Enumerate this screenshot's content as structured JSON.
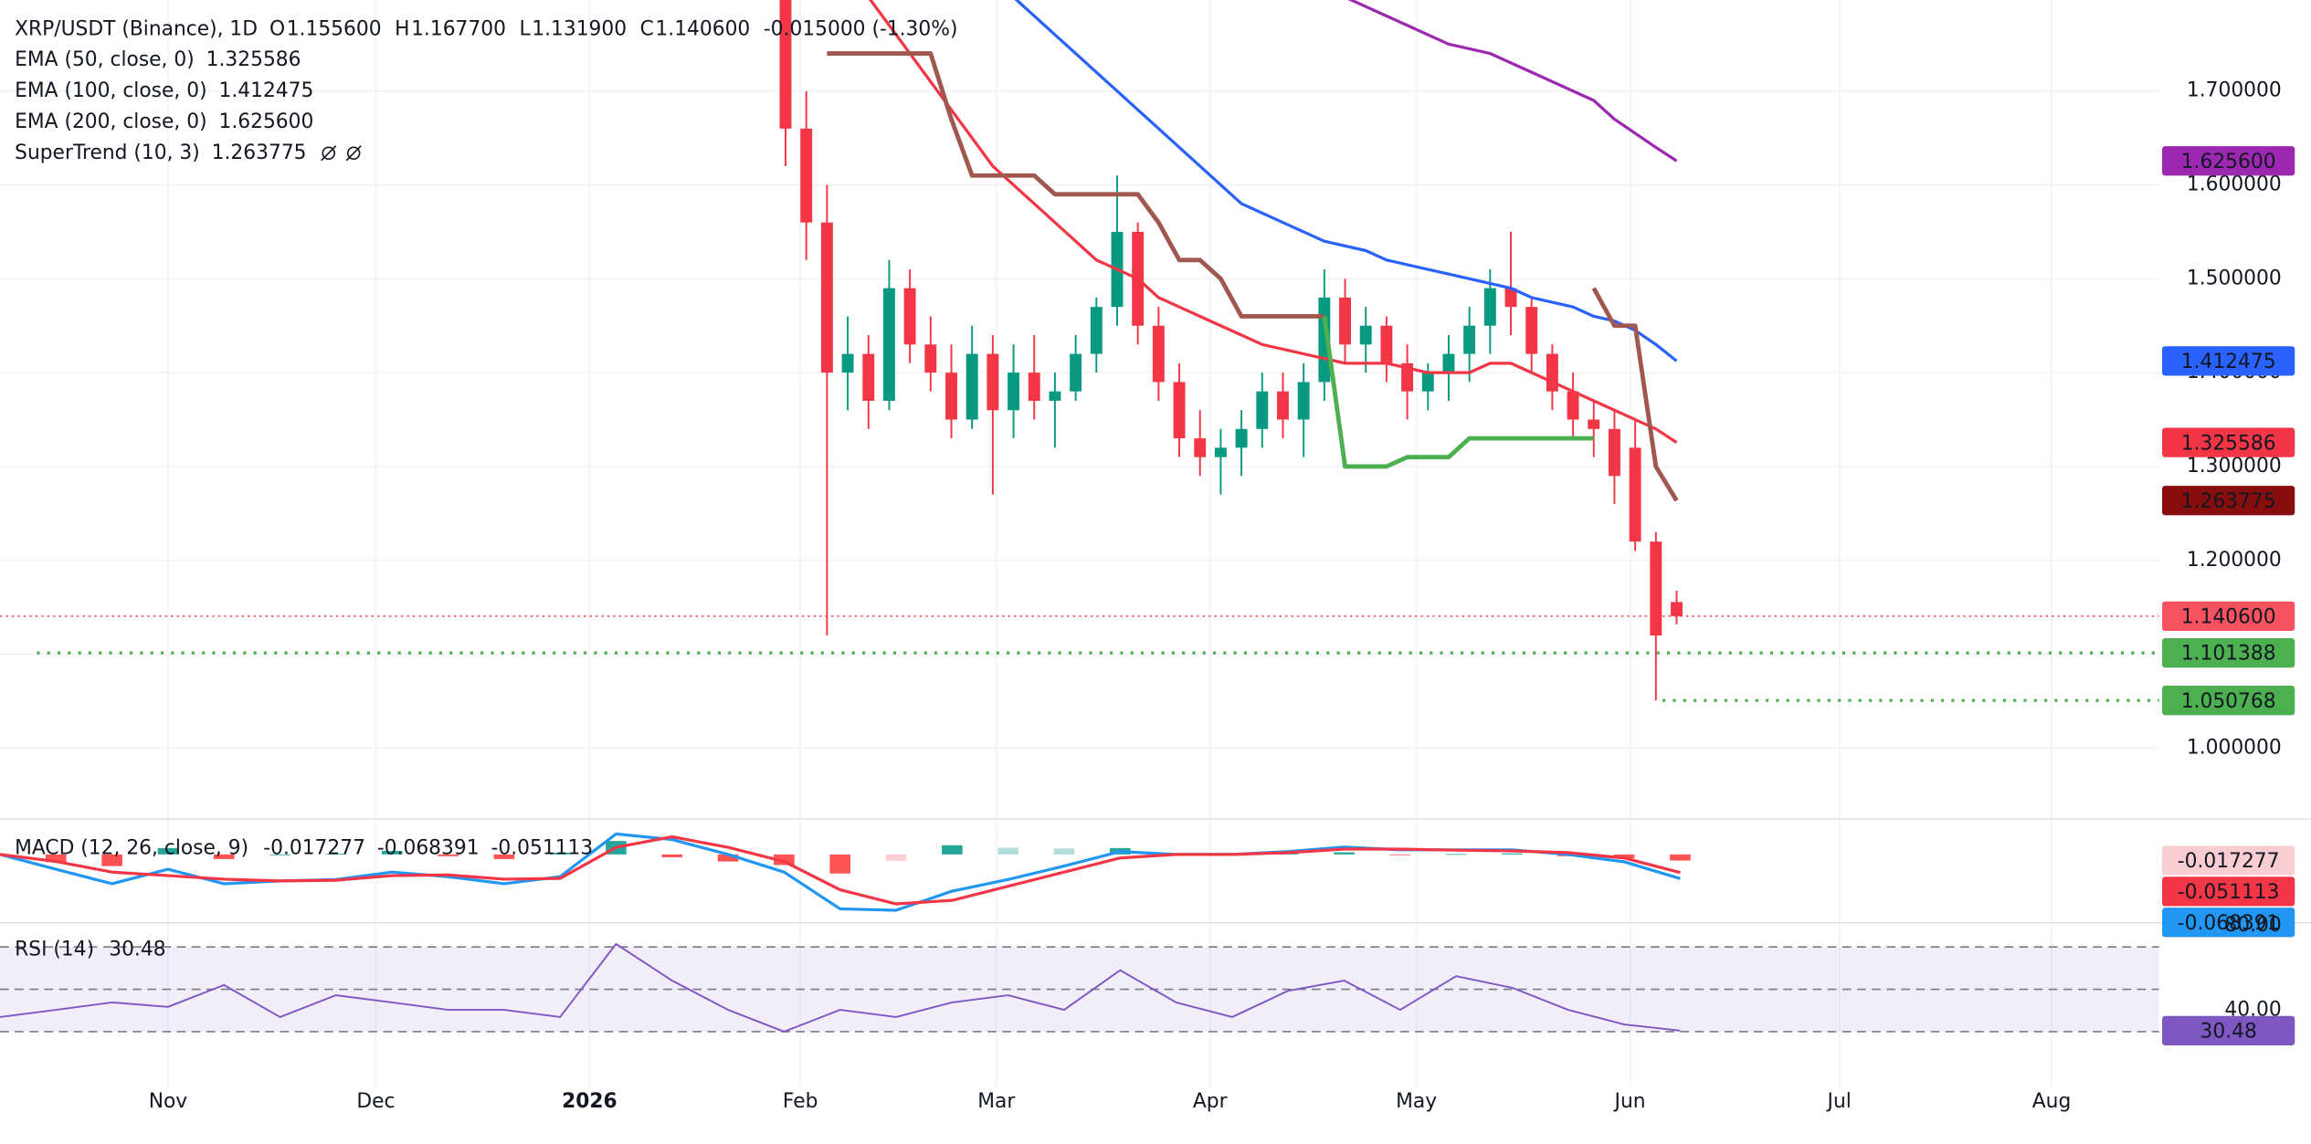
{
  "chart_data": [
    {
      "type": "candlestick",
      "title": "XRP/USDT (Binance), 1D",
      "ohlc_legend": [
        {
          "label": "O",
          "value": "1.155600"
        },
        {
          "label": "H",
          "value": "1.167700"
        },
        {
          "label": "L",
          "value": "1.131900"
        },
        {
          "label": "C",
          "value": "1.140600"
        }
      ],
      "change": "-0.015000 (-1.30%)",
      "xticks": [
        "Nov",
        "Dec",
        "2026",
        "Feb",
        "Mar",
        "Apr",
        "May",
        "Jun",
        "Jul",
        "Aug"
      ],
      "ylim": [
        0.926,
        1.797
      ],
      "yticks": [
        {
          "value": 1.0,
          "label": "1.000000"
        },
        {
          "value": 1.1,
          "label": "1.100000"
        },
        {
          "value": 1.2,
          "label": "1.200000"
        },
        {
          "value": 1.3,
          "label": "1.300000"
        },
        {
          "value": 1.4,
          "label": "1.400000"
        },
        {
          "value": 1.5,
          "label": "1.500000"
        },
        {
          "value": 1.6,
          "label": "1.600000"
        },
        {
          "value": 1.7,
          "label": "1.700000"
        }
      ],
      "grid": true,
      "candles": {
        "up_color": "#089981",
        "down_color": "#f23645",
        "open": [
          1.8,
          1.66,
          1.56,
          1.4,
          1.42,
          1.37,
          1.49,
          1.43,
          1.4,
          1.35,
          1.42,
          1.36,
          1.4,
          1.37,
          1.38,
          1.42,
          1.47,
          1.55,
          1.45,
          1.39,
          1.33,
          1.31,
          1.32,
          1.34,
          1.38,
          1.35,
          1.39,
          1.48,
          1.43,
          1.45,
          1.41,
          1.38,
          1.4,
          1.42,
          1.45,
          1.49,
          1.47,
          1.42,
          1.38,
          1.35,
          1.34,
          1.32,
          1.22,
          1.1556
        ],
        "high": [
          1.82,
          1.7,
          1.6,
          1.46,
          1.44,
          1.52,
          1.51,
          1.46,
          1.43,
          1.45,
          1.44,
          1.43,
          1.44,
          1.4,
          1.44,
          1.48,
          1.61,
          1.56,
          1.47,
          1.41,
          1.36,
          1.34,
          1.36,
          1.4,
          1.4,
          1.41,
          1.51,
          1.5,
          1.47,
          1.46,
          1.43,
          1.41,
          1.44,
          1.47,
          1.51,
          1.55,
          1.48,
          1.43,
          1.4,
          1.37,
          1.36,
          1.35,
          1.23,
          1.1677
        ],
        "low": [
          1.62,
          1.52,
          1.12,
          1.36,
          1.34,
          1.36,
          1.41,
          1.38,
          1.33,
          1.34,
          1.27,
          1.33,
          1.35,
          1.32,
          1.37,
          1.4,
          1.45,
          1.43,
          1.37,
          1.31,
          1.29,
          1.27,
          1.29,
          1.32,
          1.33,
          1.31,
          1.37,
          1.41,
          1.4,
          1.39,
          1.35,
          1.36,
          1.37,
          1.39,
          1.42,
          1.44,
          1.4,
          1.36,
          1.33,
          1.31,
          1.26,
          1.21,
          1.0508,
          1.1319
        ],
        "close": [
          1.66,
          1.56,
          1.4,
          1.42,
          1.37,
          1.49,
          1.43,
          1.4,
          1.35,
          1.42,
          1.36,
          1.4,
          1.37,
          1.38,
          1.42,
          1.47,
          1.55,
          1.45,
          1.39,
          1.33,
          1.31,
          1.32,
          1.34,
          1.38,
          1.35,
          1.39,
          1.48,
          1.43,
          1.45,
          1.41,
          1.38,
          1.4,
          1.42,
          1.45,
          1.49,
          1.47,
          1.42,
          1.38,
          1.35,
          1.34,
          1.29,
          1.22,
          1.12,
          1.1406
        ]
      },
      "series": [
        {
          "name": "EMA (50, close, 0)",
          "legend_value": "1.325586",
          "color": "#f23645",
          "values": [
            null,
            null,
            null,
            null,
            1.8,
            1.77,
            1.74,
            1.71,
            1.68,
            1.65,
            1.62,
            1.6,
            1.58,
            1.56,
            1.54,
            1.52,
            1.51,
            1.5,
            1.48,
            1.47,
            1.46,
            1.45,
            1.44,
            1.43,
            1.425,
            1.42,
            1.415,
            1.41,
            1.41,
            1.41,
            1.405,
            1.4,
            1.4,
            1.4,
            1.41,
            1.41,
            1.4,
            1.39,
            1.38,
            1.37,
            1.36,
            1.35,
            1.34,
            1.325586
          ]
        },
        {
          "name": "EMA (100, close, 0)",
          "legend_value": "1.412475",
          "color": "#2962ff",
          "values": [
            null,
            null,
            null,
            null,
            null,
            null,
            null,
            null,
            null,
            null,
            null,
            1.8,
            1.78,
            1.76,
            1.74,
            1.72,
            1.7,
            1.68,
            1.66,
            1.64,
            1.62,
            1.6,
            1.58,
            1.57,
            1.56,
            1.55,
            1.54,
            1.535,
            1.53,
            1.52,
            1.515,
            1.51,
            1.505,
            1.5,
            1.495,
            1.49,
            1.48,
            1.475,
            1.47,
            1.46,
            1.455,
            1.445,
            1.43,
            1.412475
          ]
        },
        {
          "name": "EMA (200, close, 0)",
          "legend_value": "1.625600",
          "color": "#9c27b0",
          "values": [
            null,
            null,
            null,
            null,
            null,
            null,
            null,
            null,
            null,
            null,
            null,
            null,
            null,
            null,
            null,
            null,
            null,
            null,
            null,
            null,
            null,
            null,
            null,
            null,
            null,
            null,
            null,
            1.8,
            1.79,
            1.78,
            1.77,
            1.76,
            1.75,
            1.745,
            1.74,
            1.73,
            1.72,
            1.71,
            1.7,
            1.69,
            1.67,
            1.655,
            1.64,
            1.6256
          ]
        },
        {
          "name": "SuperTrend (10, 3)",
          "legend_value": "1.263775",
          "color": "#a0574f",
          "up_color": "#4caf50",
          "values": [
            null,
            null,
            1.74,
            1.74,
            1.74,
            1.74,
            1.74,
            1.74,
            1.67,
            1.61,
            1.61,
            1.61,
            1.61,
            1.59,
            1.59,
            1.59,
            1.59,
            1.59,
            1.56,
            1.52,
            1.52,
            1.5,
            1.46,
            1.46,
            1.46,
            1.46,
            1.46,
            null,
            null,
            null,
            null,
            null,
            null,
            null,
            null,
            null,
            null,
            null,
            null,
            1.49,
            1.45,
            1.45,
            1.3,
            1.263775
          ],
          "up_values": [
            null,
            null,
            null,
            null,
            null,
            null,
            null,
            null,
            null,
            null,
            null,
            null,
            null,
            null,
            null,
            null,
            null,
            null,
            null,
            null,
            null,
            null,
            null,
            null,
            null,
            null,
            1.46,
            1.3,
            1.3,
            1.3,
            1.31,
            1.31,
            1.31,
            1.33,
            1.33,
            1.33,
            1.33,
            1.33,
            1.33,
            1.33,
            null,
            null,
            null,
            null
          ]
        }
      ],
      "price_labels": [
        {
          "value": 1.6256,
          "label": "1.625600",
          "color": "#9c27b0",
          "text_color": "#ffffff"
        },
        {
          "value": 1.412475,
          "label": "1.412475",
          "color": "#2962ff",
          "text_color": "#ffffff"
        },
        {
          "value": 1.325586,
          "label": "1.325586",
          "color": "#f23645",
          "text_color": "#ffffff"
        },
        {
          "value": 1.263775,
          "label": "1.263775",
          "color": "#880e0e",
          "text_color": "#ffffff"
        },
        {
          "value": 1.1406,
          "label": "1.140600",
          "color": "#f7525f",
          "text_color": "#ffffff",
          "dotted": true
        },
        {
          "value": 1.101388,
          "label": "1.101388",
          "color": "#4caf50",
          "text_color": "#ffffff",
          "dotted": true
        },
        {
          "value": 1.050768,
          "label": "1.050768",
          "color": "#4caf50",
          "text_color": "#ffffff",
          "dotted": true
        }
      ]
    },
    {
      "type": "line",
      "title": "MACD (12, 26, close, 9)",
      "ylim": [
        -0.1875,
        0.096
      ],
      "histogram": {
        "legend_value": "-0.017277",
        "legend_color": "#f7a1a9",
        "colors": [
          "#26a69a",
          "#b2dfdb",
          "#ffcdd2",
          "#ff5252"
        ],
        "values": [
          0,
          -0.022,
          -0.033,
          0.018,
          -0.013,
          0,
          0.002,
          0.01,
          -0.005,
          -0.013,
          0.005,
          0.038,
          -0.008,
          -0.02,
          -0.03,
          -0.054,
          -0.018,
          0.026,
          0.019,
          0.017,
          0.018,
          0,
          0,
          0.003,
          0.006,
          -0.002,
          0.001,
          0.003,
          -0.005,
          -0.011,
          -0.017277
        ]
      },
      "series": [
        {
          "legend_value": "-0.068391",
          "color": "#2196f3",
          "values": [
            0,
            -0.042,
            -0.083,
            -0.042,
            -0.083,
            -0.075,
            -0.071,
            -0.05,
            -0.063,
            -0.083,
            -0.063,
            0.058,
            0.042,
            0,
            -0.05,
            -0.154,
            -0.158,
            -0.104,
            -0.071,
            -0.033,
            0.008,
            0,
            0,
            0.008,
            0.021,
            0.013,
            0.013,
            0.013,
            0,
            -0.021,
            -0.068391
          ]
        },
        {
          "legend_value": "-0.051113",
          "color": "#f23645",
          "values": [
            0,
            -0.02,
            -0.05,
            -0.06,
            -0.07,
            -0.075,
            -0.073,
            -0.06,
            -0.058,
            -0.07,
            -0.068,
            0.02,
            0.05,
            0.02,
            -0.02,
            -0.1,
            -0.14,
            -0.13,
            -0.09,
            -0.05,
            -0.01,
            0,
            0,
            0.005,
            0.015,
            0.015,
            0.012,
            0.01,
            0.005,
            -0.01,
            -0.051113
          ]
        }
      ],
      "price_labels": [
        {
          "value": -0.017277,
          "label": "-0.017277",
          "color": "#facdd1",
          "text_color": "#131722"
        },
        {
          "value": -0.051113,
          "label": "-0.051113",
          "color": "#f23645",
          "text_color": "#ffffff"
        },
        {
          "value": -0.068391,
          "label": "-0.068391",
          "color": "#2196f3",
          "text_color": "#ffffff"
        }
      ]
    },
    {
      "type": "line",
      "title": "RSI (14)",
      "ylim": [
        3.8,
        80.3
      ],
      "yticks": [
        {
          "value": 80,
          "label": "80.00"
        },
        {
          "value": 40,
          "label": "40.00"
        }
      ],
      "bands": [
        70,
        50,
        30
      ],
      "band_color": "#7e57c2",
      "series": [
        {
          "legend_value": "30.48",
          "color": "#7e57c2",
          "values": [
            36.9,
            40.3,
            43.8,
            41.7,
            52,
            36.9,
            47.2,
            43.8,
            40.3,
            40.3,
            36.9,
            71.4,
            54.1,
            40.3,
            30,
            40.3,
            36.9,
            43.8,
            47.2,
            40.3,
            59,
            43.8,
            36.9,
            49.3,
            54.1,
            40.3,
            56.2,
            50.7,
            40.3,
            33.4,
            30.48
          ]
        }
      ],
      "price_labels": [
        {
          "value": 30.48,
          "label": "30.48",
          "color": "#7e57c2",
          "text_color": "#ffffff"
        }
      ]
    }
  ]
}
